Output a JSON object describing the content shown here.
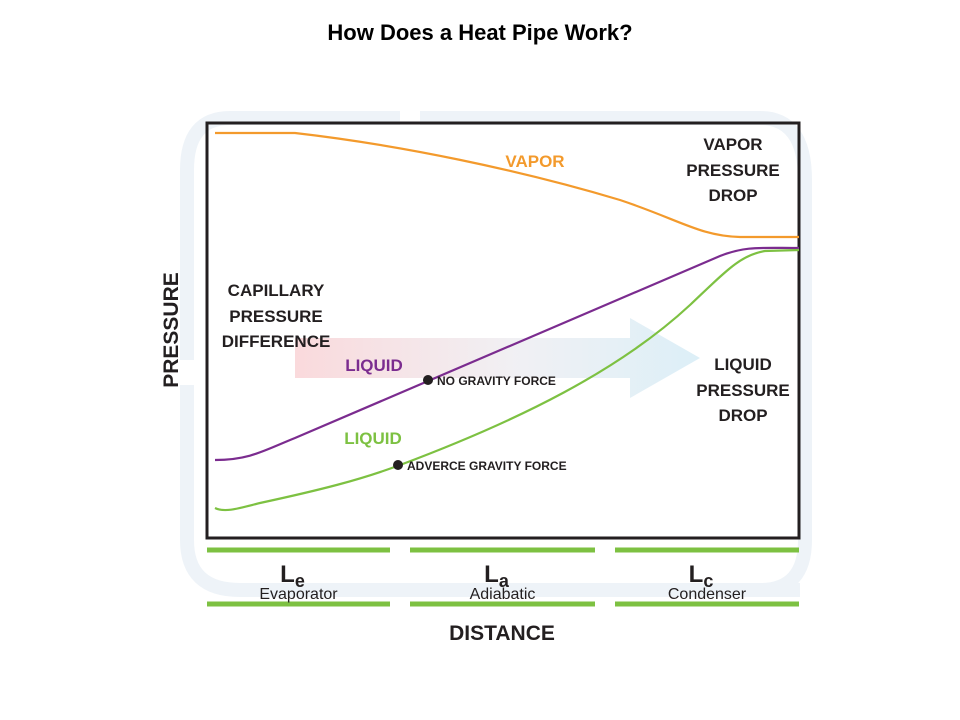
{
  "header": {
    "title": "How Does a Heat Pipe Work?"
  },
  "diagram": {
    "y_axis_label": "PRESSURE",
    "x_axis_label": "DISTANCE",
    "vapor_label": "VAPOR",
    "vapor_pressure_drop": [
      "VAPOR",
      "PRESSURE",
      "DROP"
    ],
    "capillary_pressure_difference": [
      "CAPILLARY",
      "PRESSURE",
      "DIFFERENCE"
    ],
    "liquid_no_gravity_label": "LIQUID",
    "liquid_adverse_label": "LIQUID",
    "no_gravity_force": "NO GRAVITY FORCE",
    "adverse_gravity_force": "ADVERCE GRAVITY FORCE",
    "liquid_pressure_drop": [
      "LIQUID",
      "PRESSURE",
      "DROP"
    ],
    "sections": [
      {
        "symbol": "L",
        "subscript": "e",
        "name": "Evaporator"
      },
      {
        "symbol": "L",
        "subscript": "a",
        "name": "Adiabatic"
      },
      {
        "symbol": "L",
        "subscript": "c",
        "name": "Condenser"
      }
    ]
  }
}
